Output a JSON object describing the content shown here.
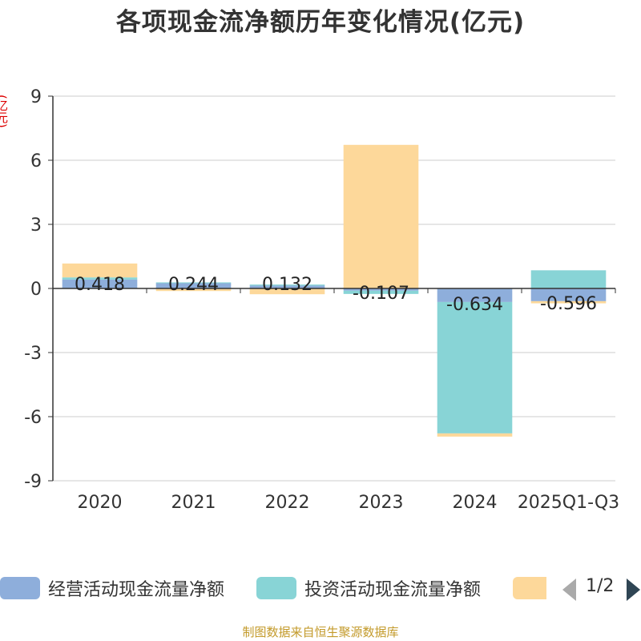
{
  "chart_data": {
    "type": "bar",
    "stacked": true,
    "title": "各项现金流净额历年变化情况(亿元)",
    "ylabel": "(亿元)",
    "xlabel": "",
    "categories": [
      "2020",
      "2021",
      "2022",
      "2023",
      "2024",
      "2025Q1-Q3"
    ],
    "ylim": [
      -9,
      9
    ],
    "yticks": [
      9,
      6,
      3,
      0,
      -3,
      -6,
      -9
    ],
    "series": [
      {
        "name": "经营活动现金流量净额",
        "color": "#8eaedb",
        "values": [
          0.418,
          0.244,
          0.132,
          -0.107,
          -0.634,
          -0.596
        ],
        "labels": [
          "0.418",
          "0.244",
          "0.132",
          "-0.107",
          "-0.634",
          "-0.596"
        ]
      },
      {
        "name": "投资活动现金流量净额",
        "color": "#88d4d6",
        "values": [
          0.1,
          0.04,
          0.05,
          -0.15,
          -6.15,
          0.85
        ]
      },
      {
        "name": "",
        "color": "#fdd89a",
        "values": [
          0.65,
          -0.12,
          -0.27,
          6.72,
          -0.15,
          -0.1
        ]
      }
    ]
  },
  "legend": {
    "pager_text": "1/2"
  },
  "footer": {
    "source": "制图数据来自恒生聚源数据库"
  }
}
